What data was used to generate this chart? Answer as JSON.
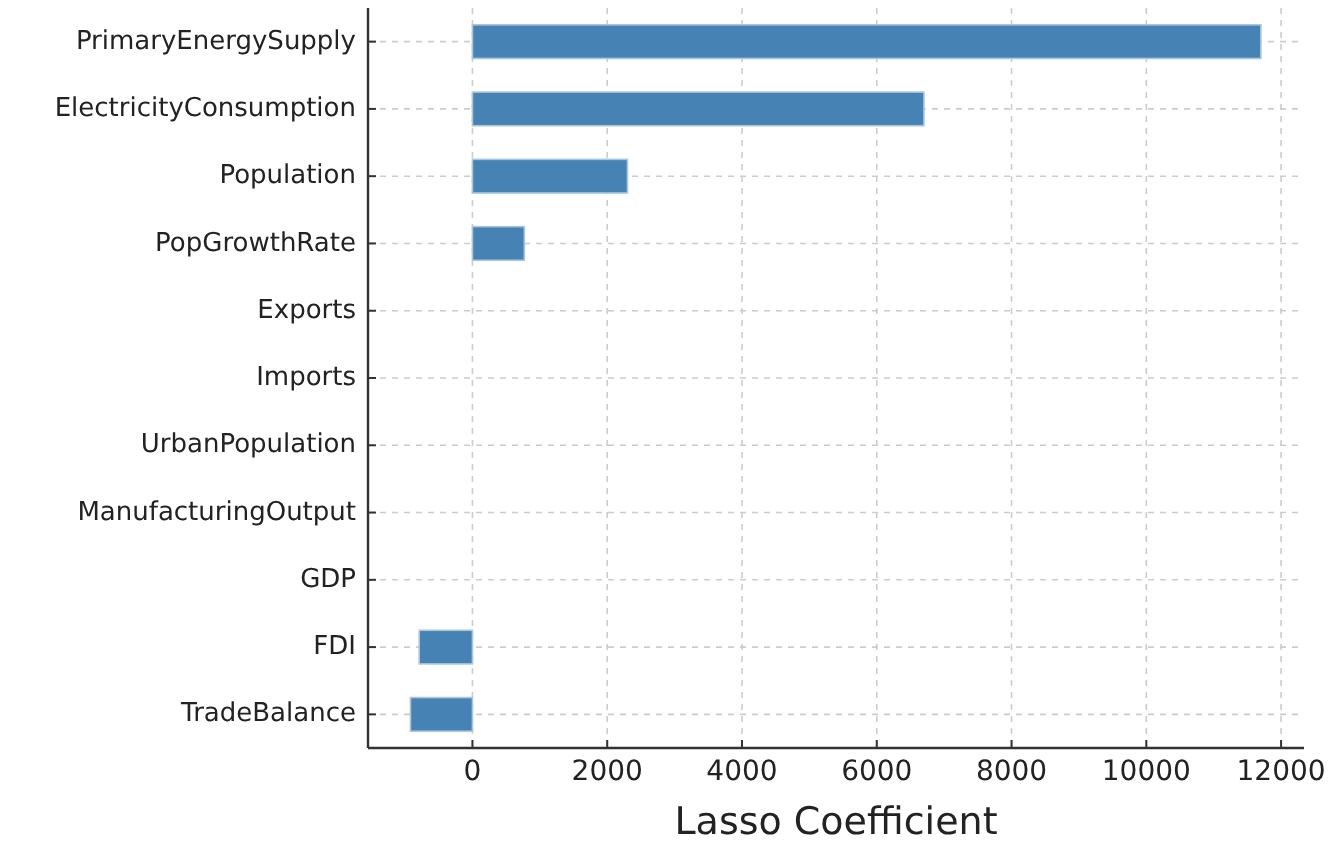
{
  "chart_data": {
    "type": "bar",
    "orientation": "horizontal",
    "xlabel": "Lasso Coefficient",
    "categories": [
      "PrimaryEnergySupply",
      "ElectricityConsumption",
      "Population",
      "PopGrowthRate",
      "Exports",
      "Imports",
      "UrbanPopulation",
      "ManufacturingOutput",
      "GDP",
      "FDI",
      "TradeBalance"
    ],
    "values": [
      11700,
      6700,
      2300,
      770,
      0,
      0,
      0,
      0,
      0,
      -790,
      -920
    ],
    "color": "#4682b4",
    "xlim": [
      -1550,
      12340
    ],
    "xticks": [
      0,
      2000,
      4000,
      6000,
      8000,
      10000,
      12000
    ],
    "grid": true
  }
}
